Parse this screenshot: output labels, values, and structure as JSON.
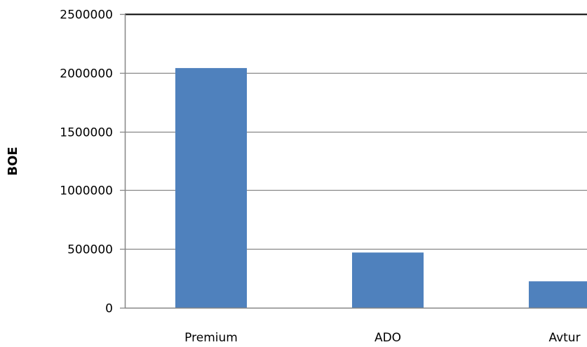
{
  "chart_data": {
    "type": "bar",
    "title": "",
    "xlabel": "",
    "ylabel": "BOE",
    "categories": [
      "Premium",
      "ADO",
      "Avtur"
    ],
    "values": [
      2040000,
      470000,
      225000
    ],
    "ylim": [
      0,
      2500000
    ],
    "yticks": [
      "0",
      "500000",
      "1000000",
      "1500000",
      "2000000",
      "2500000"
    ],
    "grid": true,
    "legend": "none",
    "bar_color": "#4f81bd",
    "grid_color": "#868686"
  }
}
